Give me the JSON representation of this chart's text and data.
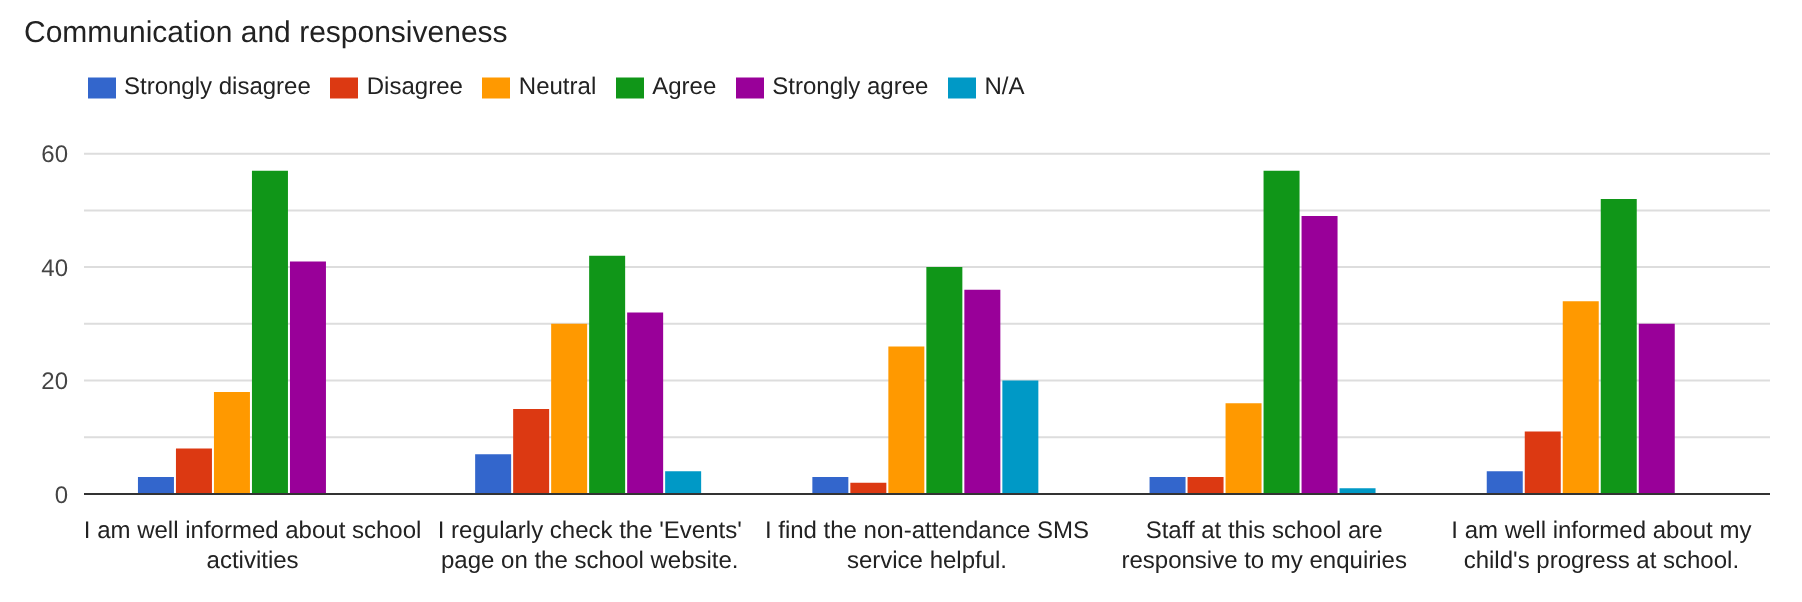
{
  "chart_data": {
    "type": "bar",
    "title": "Communication and responsiveness",
    "categories": [
      "I am well informed about school activities",
      "I regularly check the 'Events' page on the school website.",
      "I find the non-attendance SMS service helpful.",
      "Staff at this school are responsive to my enquiries",
      "I am well informed about my child's progress at school."
    ],
    "series": [
      {
        "name": "Strongly disagree",
        "color": "#3366cc",
        "values": [
          3,
          7,
          3,
          3,
          4
        ]
      },
      {
        "name": "Disagree",
        "color": "#dc3912",
        "values": [
          8,
          15,
          2,
          3,
          11
        ]
      },
      {
        "name": "Neutral",
        "color": "#ff9900",
        "values": [
          18,
          30,
          26,
          16,
          34
        ]
      },
      {
        "name": "Agree",
        "color": "#109618",
        "values": [
          57,
          42,
          40,
          57,
          52
        ]
      },
      {
        "name": "Strongly agree",
        "color": "#990099",
        "values": [
          41,
          32,
          36,
          49,
          30
        ]
      },
      {
        "name": "N/A",
        "color": "#0099c6",
        "values": [
          0,
          4,
          20,
          1,
          0
        ]
      }
    ],
    "ylim": [
      0,
      60
    ],
    "yticks": [
      0,
      {
        "value": 10,
        "label": null
      },
      20,
      {
        "value": 30,
        "label": null
      },
      40,
      {
        "value": 50,
        "label": null
      },
      60
    ],
    "grid": "y",
    "legend": "top left"
  }
}
